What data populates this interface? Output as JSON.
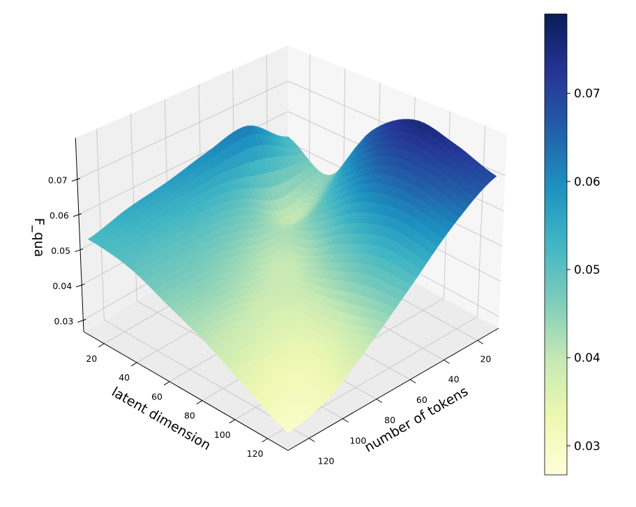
{
  "chart_data": {
    "type": "surface",
    "title": "",
    "xlabel": "latent dimension",
    "ylabel": "number of tokens",
    "zlabel": "F_qua",
    "x_ticks": [
      20,
      40,
      60,
      80,
      100,
      120
    ],
    "y_ticks": [
      20,
      40,
      60,
      80,
      100,
      120
    ],
    "z_ticks": [
      0.03,
      0.04,
      0.05,
      0.06,
      0.07
    ],
    "z_tick_labels": [
      "0.03",
      "0.04",
      "0.05",
      "0.06",
      "0.07"
    ],
    "x_tick_labels": [
      "20",
      "40",
      "60",
      "80",
      "100",
      "120"
    ],
    "y_tick_labels": [
      "20",
      "40",
      "60",
      "80",
      "100",
      "120"
    ],
    "xlim": [
      7.5,
      132.5
    ],
    "ylim": [
      7.5,
      132.5
    ],
    "zlim": [
      0.0267,
      0.0817
    ],
    "grid": true,
    "colormap": "YlGnBu",
    "grid_x_latent_dimension": [
      8,
      32,
      56,
      80,
      104,
      128
    ],
    "grid_y_number_of_tokens": [
      8,
      32,
      56,
      80,
      104,
      128
    ],
    "z_values_rows_by_latent": [
      [
        0.052,
        0.062,
        0.06,
        0.057,
        0.055,
        0.052
      ],
      [
        0.046,
        0.04,
        0.047,
        0.05,
        0.05,
        0.05
      ],
      [
        0.066,
        0.052,
        0.04,
        0.042,
        0.045,
        0.045
      ],
      [
        0.075,
        0.062,
        0.045,
        0.037,
        0.038,
        0.04
      ],
      [
        0.073,
        0.064,
        0.05,
        0.036,
        0.032,
        0.034
      ],
      [
        0.069,
        0.061,
        0.05,
        0.04,
        0.032,
        0.029
      ]
    ],
    "colorbar": {
      "range": [
        0.0267,
        0.079
      ],
      "ticks": [
        0.03,
        0.04,
        0.05,
        0.06,
        0.07
      ],
      "tick_labels": [
        "0.03",
        "0.04",
        "0.05",
        "0.06",
        "0.07"
      ],
      "placement": "right"
    },
    "cmap_stops": [
      "#ffffd9",
      "#edf8b1",
      "#c7e9b4",
      "#7fcdbb",
      "#41b6c4",
      "#1d91c0",
      "#225ea8",
      "#253494",
      "#081d58"
    ]
  }
}
